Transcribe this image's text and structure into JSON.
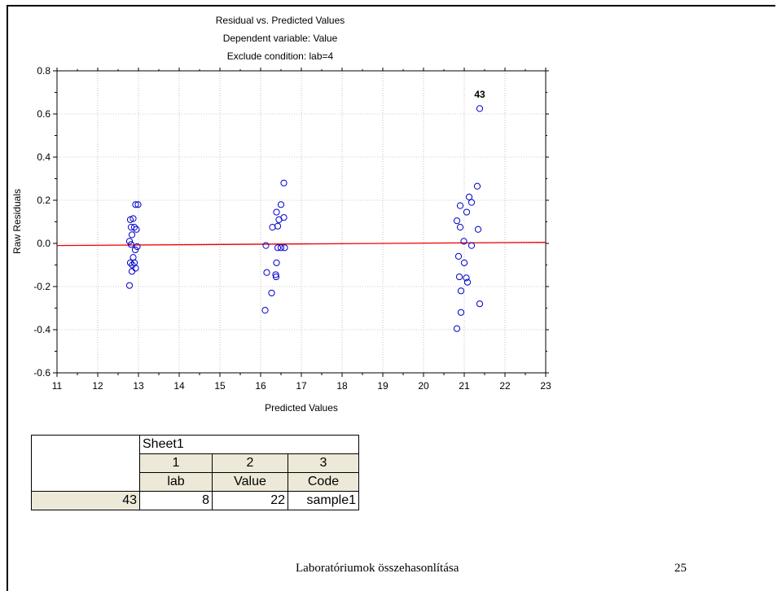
{
  "chart_data": {
    "type": "scatter",
    "title": "Residual vs. Predicted Values",
    "subtitle": [
      "Dependent variable: Value",
      "Exclude condition: lab=4"
    ],
    "xlabel": "Predicted Values",
    "ylabel": "Raw Residuals",
    "xlim": [
      11,
      23
    ],
    "ylim": [
      -0.6,
      0.8
    ],
    "xticks": [
      "11",
      "12",
      "13",
      "14",
      "15",
      "16",
      "17",
      "18",
      "19",
      "20",
      "21",
      "22",
      "23"
    ],
    "yticks": [
      "-0.6",
      "-0.4",
      "-0.2",
      "0.0",
      "0.2",
      "0.4",
      "0.6",
      "0.8"
    ],
    "grid": true,
    "point_color": "#0000cc",
    "line_color": "#ee0000",
    "fit_line": [
      [
        11,
        -0.01
      ],
      [
        23,
        0.005
      ]
    ],
    "annotations": [
      {
        "text": "43",
        "x": 21.38,
        "y": 0.675
      }
    ],
    "points": [
      [
        12.8,
        0.11
      ],
      [
        12.87,
        0.115
      ],
      [
        12.93,
        0.18
      ],
      [
        12.99,
        0.18
      ],
      [
        12.82,
        0.075
      ],
      [
        12.9,
        0.075
      ],
      [
        12.95,
        0.065
      ],
      [
        12.84,
        0.04
      ],
      [
        12.78,
        0.01
      ],
      [
        12.82,
        -0.005
      ],
      [
        12.97,
        -0.015
      ],
      [
        12.92,
        -0.03
      ],
      [
        12.87,
        -0.065
      ],
      [
        12.8,
        -0.09
      ],
      [
        12.85,
        -0.1
      ],
      [
        12.9,
        -0.09
      ],
      [
        12.93,
        -0.115
      ],
      [
        12.84,
        -0.13
      ],
      [
        12.78,
        -0.195
      ],
      [
        16.57,
        0.28
      ],
      [
        16.5,
        0.18
      ],
      [
        16.45,
        0.11
      ],
      [
        16.39,
        0.145
      ],
      [
        16.57,
        0.12
      ],
      [
        16.29,
        0.075
      ],
      [
        16.42,
        0.08
      ],
      [
        16.13,
        -0.01
      ],
      [
        16.42,
        -0.02
      ],
      [
        16.5,
        -0.02
      ],
      [
        16.59,
        -0.02
      ],
      [
        16.39,
        -0.09
      ],
      [
        16.15,
        -0.135
      ],
      [
        16.37,
        -0.145
      ],
      [
        16.38,
        -0.155
      ],
      [
        16.27,
        -0.23
      ],
      [
        16.11,
        -0.31
      ],
      [
        21.38,
        0.625
      ],
      [
        21.32,
        0.265
      ],
      [
        21.12,
        0.215
      ],
      [
        20.9,
        0.175
      ],
      [
        21.18,
        0.19
      ],
      [
        21.06,
        0.145
      ],
      [
        20.82,
        0.105
      ],
      [
        20.9,
        0.075
      ],
      [
        21.34,
        0.065
      ],
      [
        20.99,
        0.01
      ],
      [
        21.18,
        -0.01
      ],
      [
        20.86,
        -0.06
      ],
      [
        21.0,
        -0.09
      ],
      [
        20.88,
        -0.155
      ],
      [
        21.05,
        -0.16
      ],
      [
        21.08,
        -0.18
      ],
      [
        20.92,
        -0.22
      ],
      [
        21.38,
        -0.28
      ],
      [
        20.92,
        -0.32
      ],
      [
        20.82,
        -0.395
      ]
    ]
  },
  "table": {
    "sheet_name": "Sheet1",
    "col_numbers": [
      "1",
      "2",
      "3"
    ],
    "col_names": [
      "lab",
      "Value",
      "Code"
    ],
    "row_label": "43",
    "row_values": [
      "8",
      "22",
      "sample1"
    ]
  },
  "footer": {
    "text": "Laboratóriumok összehasonlítása",
    "page_number": "25"
  }
}
